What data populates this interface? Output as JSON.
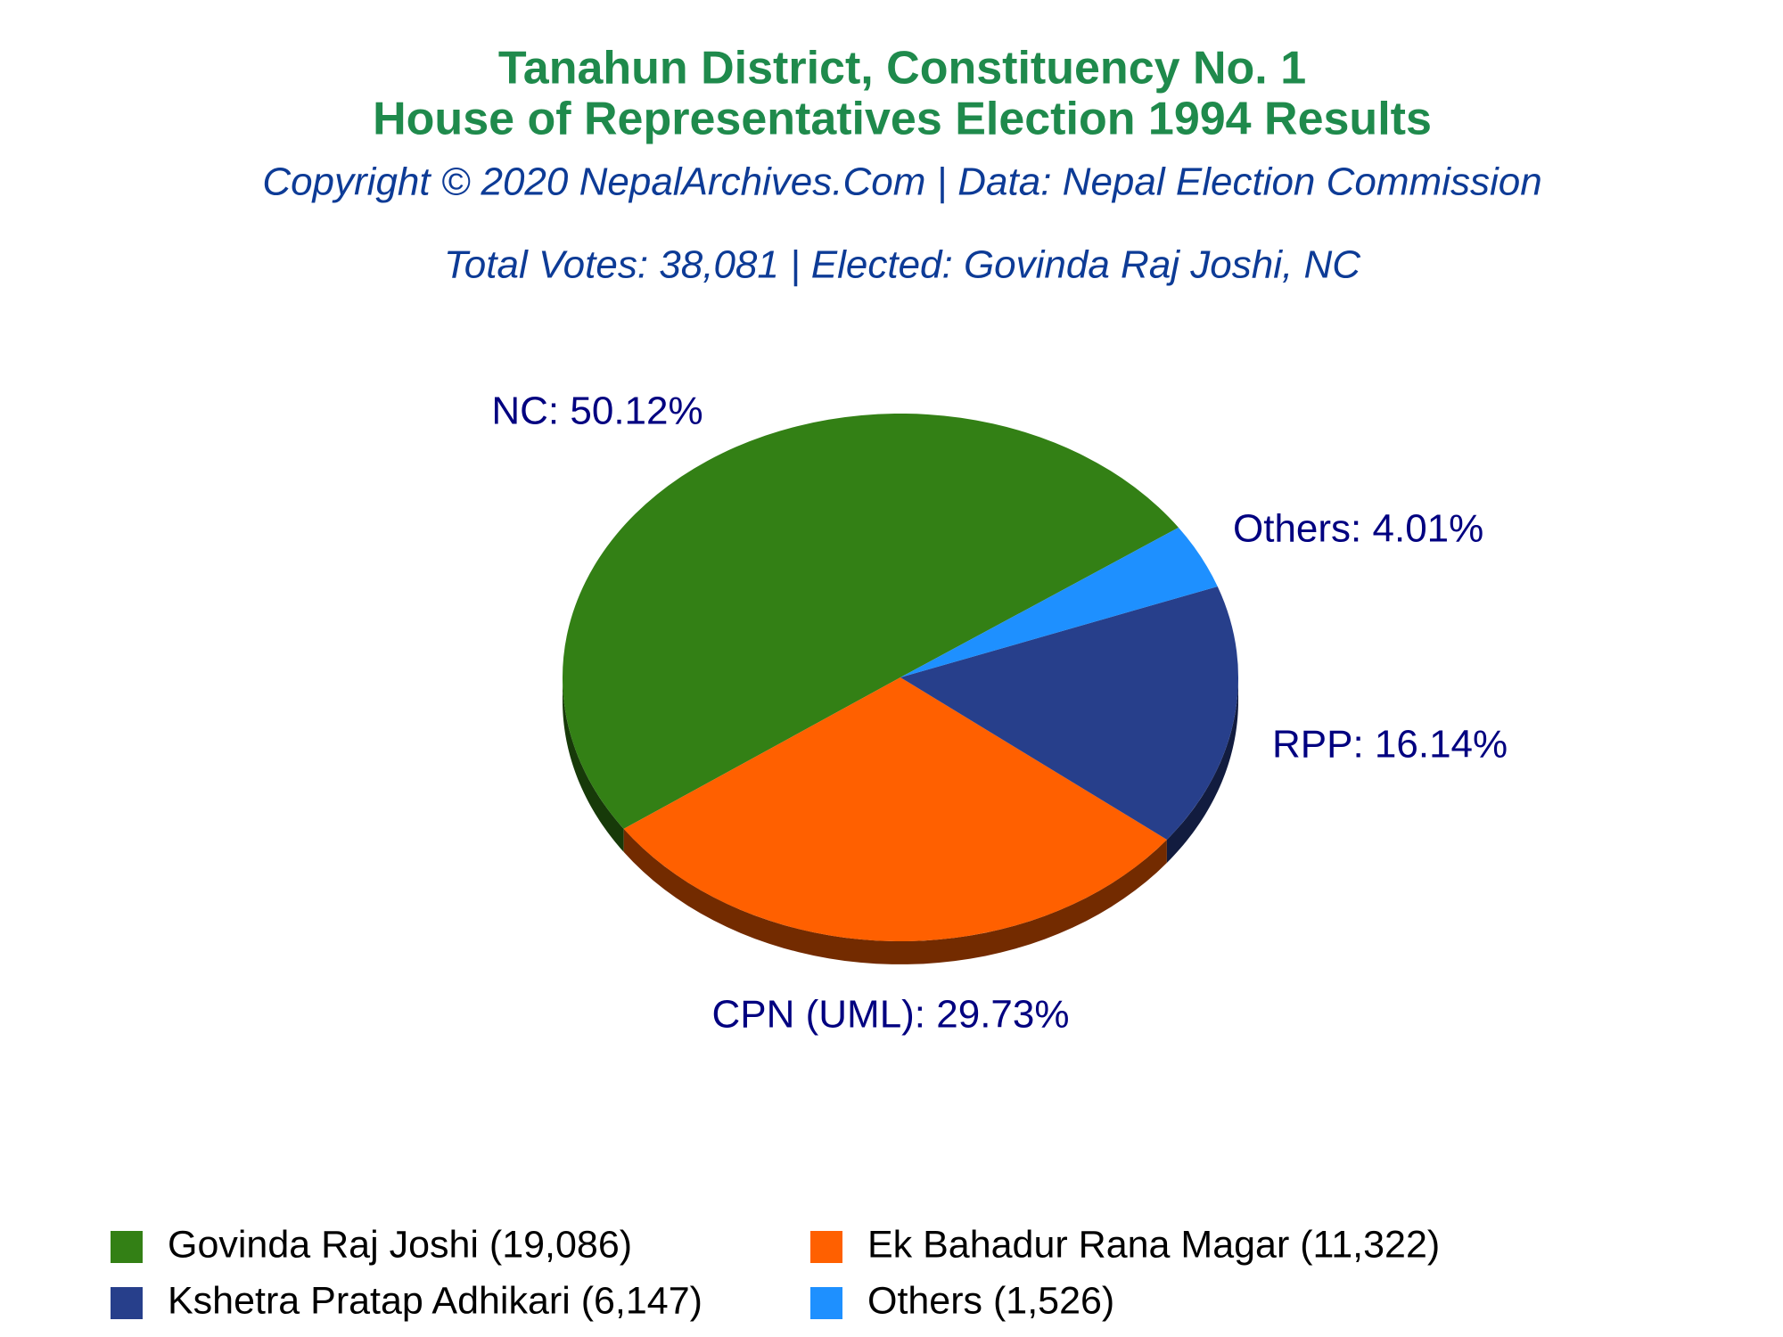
{
  "chart_data": {
    "type": "pie",
    "title": "Tanahun District, Constituency No. 1",
    "subtitle": "House of Representatives Election 1994 Results",
    "source": "Copyright © 2020 NepalArchives.Com | Data: Nepal Election Commission",
    "annotation": "Total Votes: 38,081 | Elected: Govinda Raj Joshi, NC",
    "series": [
      {
        "name": "Govinda Raj Joshi (19,086)",
        "color": "#338015",
        "values": [
          50.12
        ],
        "value_labels": [
          "NC: 50.12%"
        ]
      },
      {
        "name": "Ek Bahadur Rana Magar (11,322)",
        "color": "#ff6000",
        "values": [
          29.73
        ],
        "value_labels": [
          "CPN (UML): 29.73%"
        ]
      },
      {
        "name": "Kshetra Pratap Adhikari (6,147)",
        "color": "#273f8b",
        "values": [
          16.14
        ],
        "value_labels": [
          "RPP: 16.14%"
        ]
      },
      {
        "name": "Others (1,526)",
        "color": "#1e90ff",
        "values": [
          4.01
        ],
        "value_labels": [
          "Others: 4.01%"
        ]
      }
    ]
  }
}
